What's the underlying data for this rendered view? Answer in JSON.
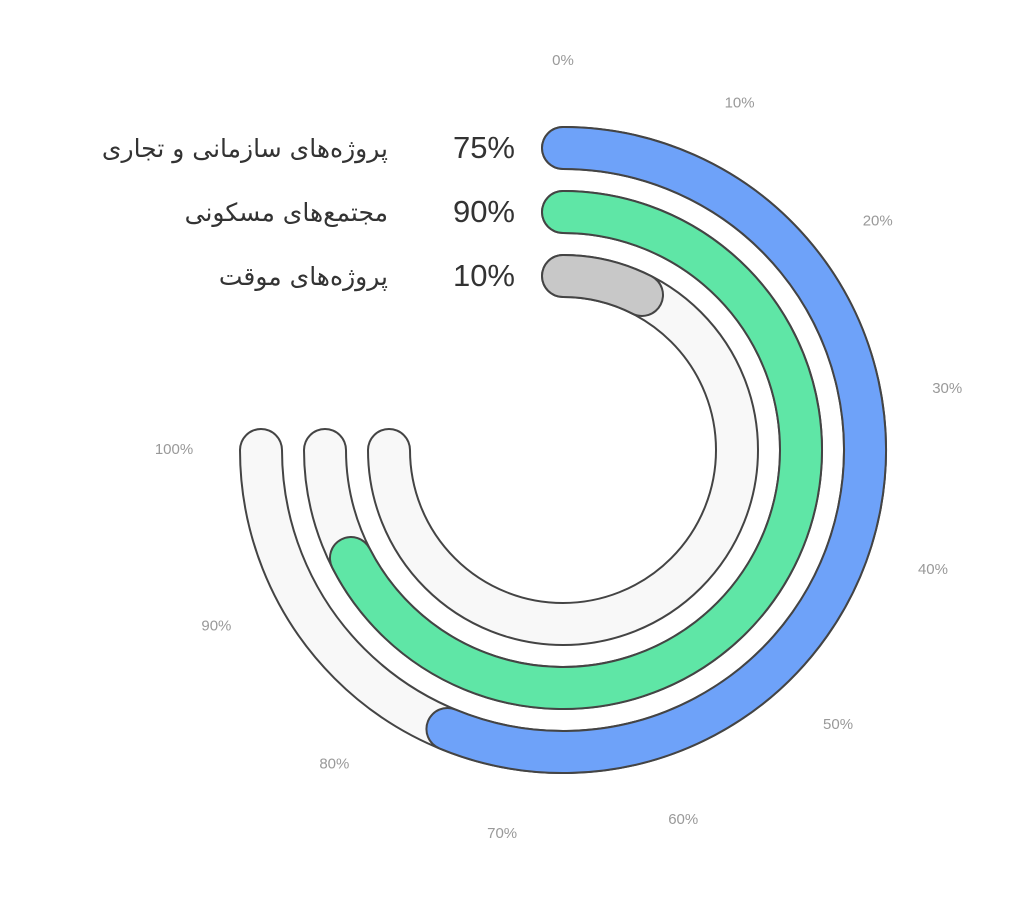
{
  "chart_data": {
    "type": "radial-bar",
    "series": [
      {
        "name": "پروژه‌های سازمانی و تجاری",
        "color": "#6ea2f9",
        "values": [
          75
        ],
        "value_labels": [
          "75%"
        ]
      },
      {
        "name": "مجتمع‌های مسکونی",
        "color": "#5fe6a6",
        "values": [
          90
        ],
        "value_labels": [
          "90%"
        ]
      },
      {
        "name": "پروژه‌های موقت",
        "color": "#c8c8c8",
        "values": [
          10
        ],
        "value_labels": [
          "10%"
        ]
      }
    ],
    "xlim": [
      0,
      100
    ],
    "xticks": [
      {
        "value": 0,
        "label": "0%"
      },
      {
        "value": 10,
        "label": "10%"
      },
      {
        "value": 20,
        "label": "20%"
      },
      {
        "value": 30,
        "label": "30%"
      },
      {
        "value": 40,
        "label": "40%"
      },
      {
        "value": 50,
        "label": "50%"
      },
      {
        "value": 60,
        "label": "60%"
      },
      {
        "value": 70,
        "label": "70%"
      },
      {
        "value": 80,
        "label": "80%"
      },
      {
        "value": 90,
        "label": "90%"
      },
      {
        "value": 100,
        "label": "100%"
      }
    ]
  }
}
